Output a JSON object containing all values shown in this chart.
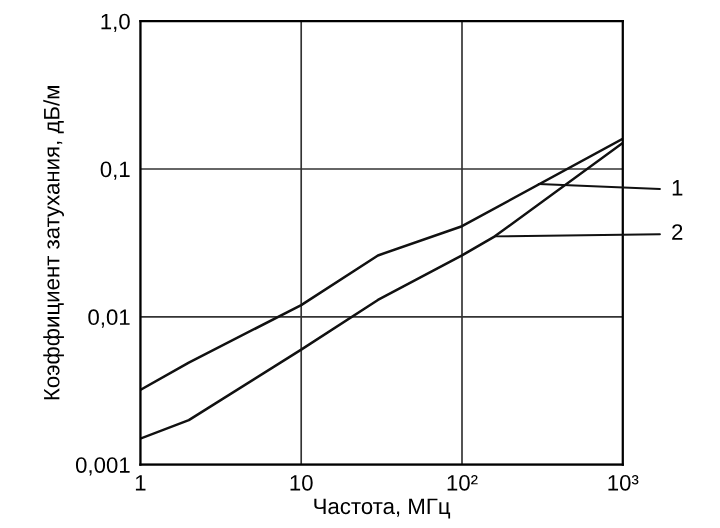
{
  "chart_data": {
    "type": "line",
    "xlabel": "Частота, МГц",
    "ylabel": "Коэффициент затухания, дБ/м",
    "log": "xy",
    "grid": true,
    "line_style": "solid",
    "marker": "none",
    "xlim": [
      1,
      1000
    ],
    "ylim": [
      0.001,
      1.0
    ],
    "xticks": [
      1,
      10,
      {
        "value": 100,
        "label": "10²"
      },
      {
        "value": 1000,
        "label": "10³"
      }
    ],
    "yticks": [
      {
        "value": 0.001,
        "label": "0,001"
      },
      {
        "value": 0.01,
        "label": "0,01"
      },
      {
        "value": 0.1,
        "label": "0,1"
      },
      {
        "value": 1.0,
        "label": "1,0"
      }
    ],
    "series": [
      {
        "color": "#111111",
        "x": [
          1,
          2,
          10,
          30,
          100,
          1000
        ],
        "values": [
          0.0032,
          0.0049,
          0.012,
          0.026,
          0.041,
          0.16
        ]
      },
      {
        "color": "#111111",
        "x": [
          1,
          2,
          10,
          30,
          100,
          160,
          1000
        ],
        "values": [
          0.0015,
          0.002,
          0.006,
          0.013,
          0.026,
          0.035,
          0.15
        ]
      }
    ],
    "annotations": [
      {
        "text": "1",
        "x": 300,
        "y": 0.079
      },
      {
        "text": "2",
        "x": 160,
        "y": 0.035
      }
    ]
  }
}
